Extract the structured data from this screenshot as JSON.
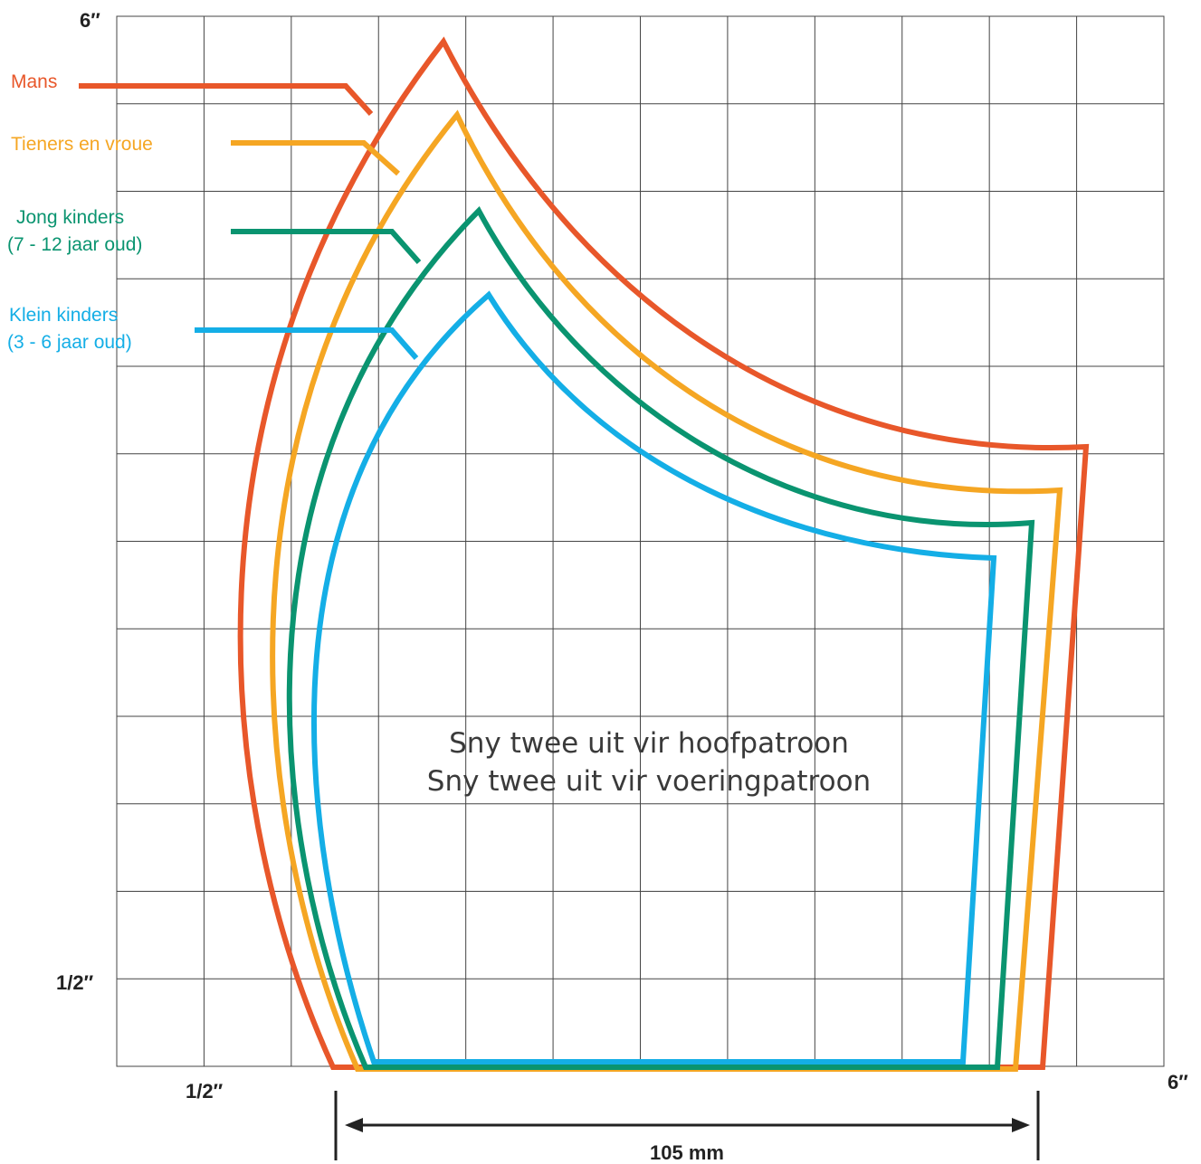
{
  "labels": {
    "top_left": "6″",
    "bottom_right": "6″",
    "y_half": "1/2″",
    "x_half": "1/2″"
  },
  "instructions": {
    "line1": "Sny twee uit vir hoofpatroon",
    "line2": "Sny twee uit vir voeringpatroon"
  },
  "dimension": {
    "label": "105 mm"
  },
  "sizes": [
    {
      "id": "mans",
      "lines": [
        "Mans"
      ],
      "color": "#e8572a"
    },
    {
      "id": "tieners",
      "lines": [
        "Tieners  en vroue"
      ],
      "color": "#f5a623"
    },
    {
      "id": "jong",
      "lines": [
        "Jong kinders",
        "(7  - 12 jaar oud)"
      ],
      "color": "#0a9470"
    },
    {
      "id": "klein",
      "lines": [
        "Klein kinders",
        "(3 - 6 jaar oud)"
      ],
      "color": "#14aee6"
    }
  ],
  "grid": {
    "columns": 12,
    "rows": 12,
    "color": "#444444"
  }
}
